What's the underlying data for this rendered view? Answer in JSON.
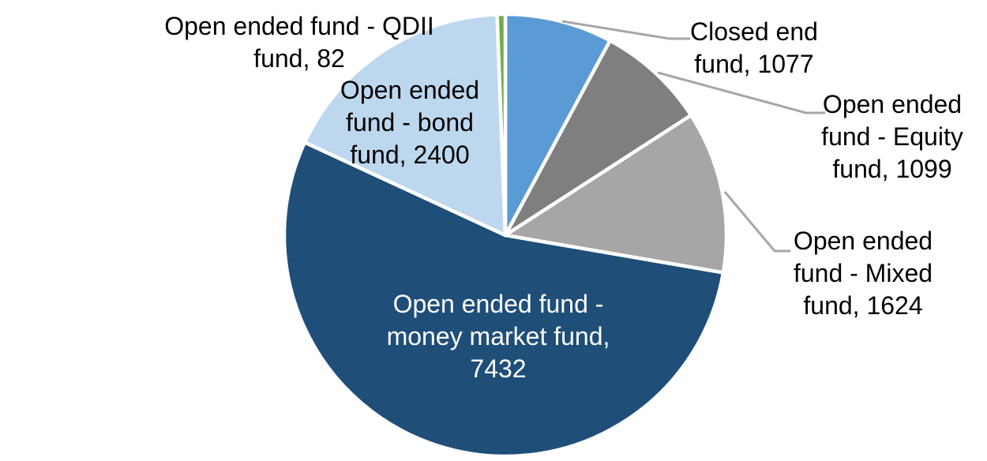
{
  "chart_data": {
    "type": "pie",
    "title": "",
    "legend": "none",
    "label_format": "category, value",
    "background_color": "#FFFFFF",
    "border_color": "#FFFFFF",
    "leader_line_color": "#A6A6A6",
    "start_angle_deg": 0,
    "direction": "clockwise",
    "slices": [
      {
        "id": "closed-end-fund",
        "label": "Closed end fund",
        "value": 1077,
        "color": "#5B9BD5",
        "label_text": "Closed end fund, 1077",
        "label_lines": [
          "Closed end",
          "fund, 1077"
        ],
        "label_color": "#000000",
        "leader_line": true
      },
      {
        "id": "equity-fund",
        "label": "Open ended fund - Equity fund",
        "value": 1099,
        "color": "#7F7F7F",
        "label_text": "Open ended fund - Equity fund, 1099",
        "label_lines": [
          "Open ended",
          "fund - Equity",
          "fund, 1099"
        ],
        "label_color": "#000000",
        "leader_line": true
      },
      {
        "id": "mixed-fund",
        "label": "Open ended fund - Mixed fund",
        "value": 1624,
        "color": "#A6A6A6",
        "label_text": "Open ended fund - Mixed fund, 1624",
        "label_lines": [
          "Open ended",
          "fund - Mixed",
          "fund, 1624"
        ],
        "label_color": "#000000",
        "leader_line": true
      },
      {
        "id": "money-market-fund",
        "label": "Open ended fund - money market fund",
        "value": 7432,
        "color": "#1F4E79",
        "label_text": "Open ended fund - money market fund, 7432",
        "label_lines": [
          "Open ended fund -",
          "money market fund,",
          "7432"
        ],
        "label_color": "#FFFFFF",
        "leader_line": false
      },
      {
        "id": "bond-fund",
        "label": "Open ended fund - bond fund",
        "value": 2400,
        "color": "#BDD7EE",
        "label_text": "Open ended fund - bond fund, 2400",
        "label_lines": [
          "Open ended",
          "fund - bond",
          "fund, 2400"
        ],
        "label_color": "#000000",
        "leader_line": false
      },
      {
        "id": "qdii-fund",
        "label": "Open ended fund - QDII fund",
        "value": 82,
        "color": "#70AD47",
        "label_text": "Open ended fund - QDII fund, 82",
        "label_lines": [
          "Open ended fund - QDII",
          "fund, 82"
        ],
        "label_color": "#000000",
        "leader_line": false
      }
    ]
  }
}
